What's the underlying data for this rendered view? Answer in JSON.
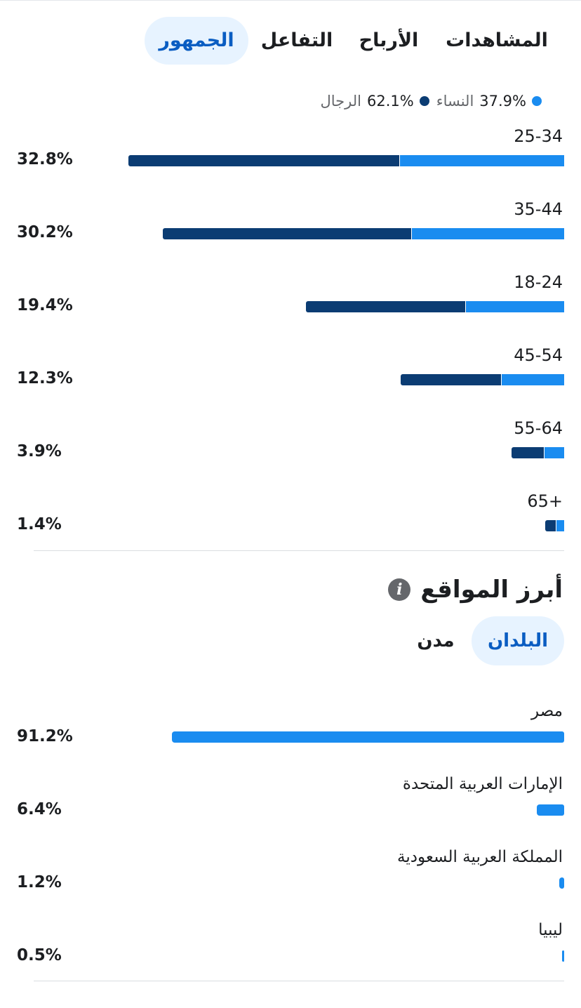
{
  "tabs": [
    {
      "label": "المشاهدات"
    },
    {
      "label": "الأرباح"
    },
    {
      "label": "التفاعل"
    },
    {
      "label": "الجمهور"
    }
  ],
  "legend": {
    "women": {
      "value": "37.9%",
      "label": "النساء",
      "color": "#1a8cf0"
    },
    "men": {
      "value": "62.1%",
      "label": "الرجال",
      "color": "#0b3c73"
    }
  },
  "chart_data": {
    "type": "bar",
    "categories": [
      "25-34",
      "35-44",
      "18-24",
      "45-54",
      "55-64",
      "65+"
    ],
    "totals": [
      32.8,
      30.2,
      19.4,
      12.3,
      3.9,
      1.4
    ],
    "total_labels": [
      "32.8%",
      "30.2%",
      "19.4%",
      "12.3%",
      "3.9%",
      "1.4%"
    ],
    "series": [
      {
        "name": "النساء",
        "values": [
          12.4,
          11.5,
          7.4,
          4.7,
          1.5,
          0.6
        ]
      },
      {
        "name": "الرجال",
        "values": [
          20.4,
          18.7,
          12.0,
          7.6,
          2.4,
          0.8
        ]
      }
    ]
  },
  "locations": {
    "title": "أبرز المواقع",
    "tabs": [
      {
        "label": "البلدان"
      },
      {
        "label": "مدن"
      }
    ],
    "countries": [
      {
        "name": "مصر",
        "value": 91.2,
        "label": "91.2%"
      },
      {
        "name": "الإمارات العربية المتحدة",
        "value": 6.4,
        "label": "6.4%"
      },
      {
        "name": "المملكة العربية السعودية",
        "value": 1.2,
        "label": "1.2%"
      },
      {
        "name": "ليبيا",
        "value": 0.5,
        "label": "0.5%"
      }
    ]
  }
}
